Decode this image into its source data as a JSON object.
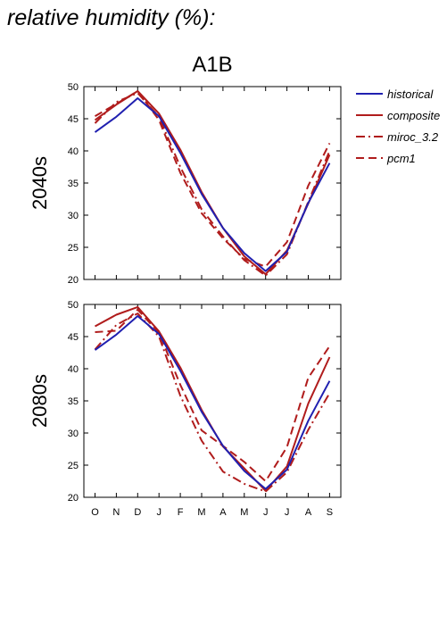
{
  "title": "relative humidity (%):",
  "scenario": "A1B",
  "colors": {
    "blue": "#2020b0",
    "red": "#b01c1c"
  },
  "chart_data": [
    {
      "type": "line",
      "panel_label": "2040s",
      "categories": [
        "O",
        "N",
        "D",
        "J",
        "F",
        "M",
        "A",
        "M",
        "J",
        "J",
        "A",
        "S"
      ],
      "ylim": [
        20,
        50
      ],
      "yticks": [
        20,
        25,
        30,
        35,
        40,
        45,
        50
      ],
      "grid": false,
      "legend": "right",
      "series": [
        {
          "name": "historical",
          "style": "solid",
          "color": "#2020b0",
          "values": [
            42.9,
            45.3,
            48.2,
            45.4,
            39.7,
            33.3,
            28.0,
            24.1,
            21.3,
            24.3,
            31.9,
            38.1
          ]
        },
        {
          "name": "composite",
          "style": "solid",
          "color": "#b01c1c",
          "values": [
            44.8,
            47.2,
            49.3,
            45.8,
            40.2,
            33.6,
            28.0,
            23.6,
            20.8,
            24.5,
            31.8,
            39.4
          ]
        },
        {
          "name": "miroc_3.2",
          "style": "dashdot",
          "color": "#b01c1c",
          "values": [
            44.3,
            47.6,
            49.0,
            45.3,
            37.5,
            30.9,
            26.7,
            23.0,
            20.6,
            23.9,
            32.1,
            40.0
          ]
        },
        {
          "name": "pcm1",
          "style": "dashed",
          "color": "#b01c1c",
          "values": [
            45.4,
            47.3,
            49.3,
            44.8,
            36.6,
            30.3,
            26.4,
            23.2,
            22.0,
            25.8,
            34.6,
            41.2
          ]
        }
      ]
    },
    {
      "type": "line",
      "panel_label": "2080s",
      "categories": [
        "O",
        "N",
        "D",
        "J",
        "F",
        "M",
        "A",
        "M",
        "J",
        "J",
        "A",
        "S"
      ],
      "ylim": [
        20,
        50
      ],
      "yticks": [
        20,
        25,
        30,
        35,
        40,
        45,
        50
      ],
      "grid": false,
      "series": [
        {
          "name": "historical",
          "style": "solid",
          "color": "#2020b0",
          "values": [
            42.9,
            45.3,
            48.2,
            45.4,
            39.7,
            33.3,
            28.0,
            24.1,
            21.3,
            24.3,
            31.9,
            38.1
          ]
        },
        {
          "name": "composite",
          "style": "solid",
          "color": "#b01c1c",
          "values": [
            46.6,
            48.4,
            49.6,
            45.8,
            40.2,
            33.6,
            27.9,
            24.5,
            21.0,
            24.8,
            34.6,
            41.8
          ]
        },
        {
          "name": "miroc_3.2",
          "style": "dashdot",
          "color": "#b01c1c",
          "values": [
            43.0,
            46.8,
            48.6,
            45.0,
            35.8,
            28.8,
            24.0,
            22.1,
            20.9,
            23.9,
            30.5,
            36.2
          ]
        },
        {
          "name": "pcm1",
          "style": "dashed",
          "color": "#b01c1c",
          "values": [
            45.7,
            45.9,
            49.2,
            45.6,
            37.5,
            30.4,
            28.0,
            25.5,
            22.5,
            27.8,
            38.6,
            43.5
          ]
        }
      ]
    }
  ]
}
